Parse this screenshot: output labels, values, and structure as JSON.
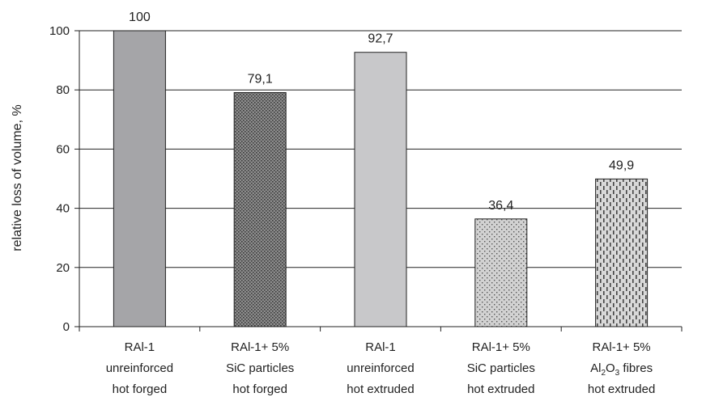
{
  "chart_data": {
    "type": "bar",
    "title": "",
    "xlabel": "",
    "ylabel": "relative loss of volume, %",
    "ylim": [
      0,
      100
    ],
    "yticks": [
      0,
      20,
      40,
      60,
      80,
      100
    ],
    "grid": "horizontal",
    "categories": [
      [
        "RAl-1",
        "unreinforced",
        "hot forged"
      ],
      [
        "RAl-1+ 5%",
        "SiC particles",
        "hot forged"
      ],
      [
        "RAl-1",
        "unreinforced",
        "hot extruded"
      ],
      [
        "RAl-1+ 5%",
        "SiC particles",
        "hot extruded"
      ],
      [
        "RAl-1+ 5%",
        "Al2O3 fibres",
        "hot extruded"
      ]
    ],
    "values": [
      100,
      79.1,
      92.7,
      36.4,
      49.9
    ],
    "value_labels": [
      "100",
      "79,1",
      "92,7",
      "36,4",
      "49,9"
    ],
    "bar_styles": [
      {
        "fill": "#a5a5a8",
        "pattern": "solid"
      },
      {
        "fill": "#8c8c8c",
        "pattern": "dense-dots"
      },
      {
        "fill": "#c8c8ca",
        "pattern": "solid"
      },
      {
        "fill": "#d2d2d2",
        "pattern": "sparse-dots"
      },
      {
        "fill": "#d8d8d8",
        "pattern": "dashes"
      }
    ]
  }
}
